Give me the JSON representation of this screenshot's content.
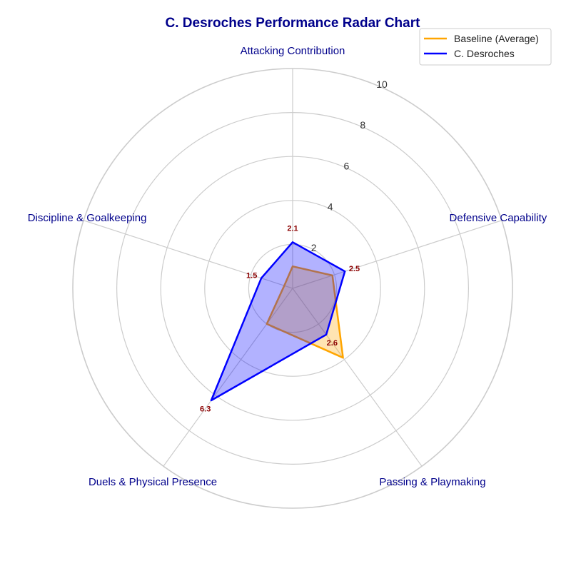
{
  "chart_data": {
    "type": "radar",
    "title": "C. Desroches Performance Radar Chart",
    "axes": [
      "Attacking Contribution",
      "Defensive Capability",
      "Passing & Playmaking",
      "Duels & Physical Presence",
      "Discipline & Goalkeeping"
    ],
    "rlim": [
      0,
      10
    ],
    "r_ticks": [
      2,
      4,
      6,
      8,
      10
    ],
    "grid": true,
    "legend_position": "top-right",
    "series": [
      {
        "name": "Baseline (Average)",
        "values": [
          1.0,
          1.9,
          3.9,
          2.0,
          0.4
        ],
        "color": "#ffa500",
        "fill": "#ffa500"
      },
      {
        "name": "C. Desroches",
        "values": [
          2.1,
          2.5,
          2.6,
          6.3,
          1.5
        ],
        "color": "#0000ff",
        "fill": "#0000ff"
      }
    ],
    "data_labels_series": "C. Desroches",
    "data_labels": [
      "2.1",
      "2.5",
      "2.6",
      "6.3",
      "1.5"
    ]
  },
  "colors": {
    "title": "#00008b",
    "axis_label": "#00008b",
    "data_label": "#8b0000",
    "grid": "#cccccc"
  }
}
